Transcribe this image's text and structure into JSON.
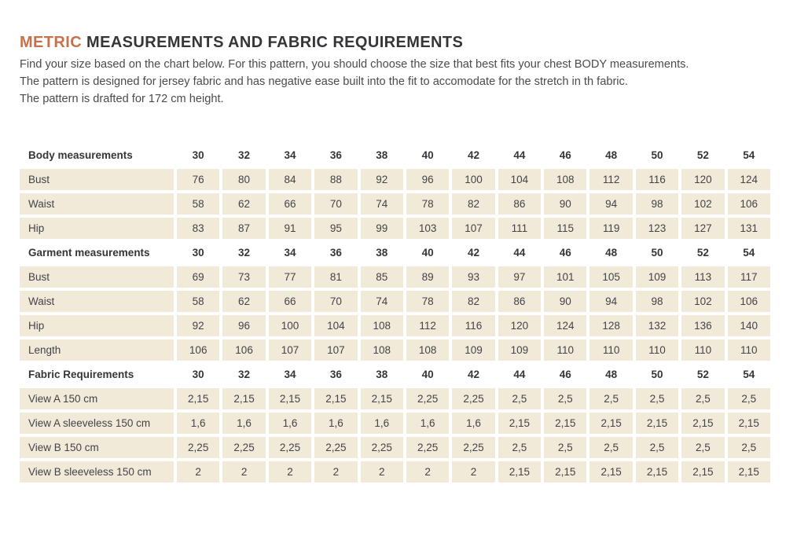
{
  "colors": {
    "accent": "#c4734d",
    "row_bg": "#f2ead8",
    "text": "#3e3e44"
  },
  "header": {
    "title_highlight": "METRIC",
    "title_rest": " MEASUREMENTS AND FABRIC REQUIREMENTS",
    "intro_lines": [
      "Find your size based on the chart below. For this pattern, you should choose the size that best fits your chest BODY measurements.",
      "The pattern is designed for jersey fabric and has negative ease built into the fit to accomodate for the stretch in th fabric.",
      "The pattern is drafted for 172 cm height."
    ]
  },
  "table": {
    "sizes": [
      "30",
      "32",
      "34",
      "36",
      "38",
      "40",
      "42",
      "44",
      "46",
      "48",
      "50",
      "52",
      "54"
    ],
    "sections": [
      {
        "header": "Body measurements",
        "rows": [
          {
            "label": "Bust",
            "values": [
              "76",
              "80",
              "84",
              "88",
              "92",
              "96",
              "100",
              "104",
              "108",
              "112",
              "116",
              "120",
              "124"
            ]
          },
          {
            "label": "Waist",
            "values": [
              "58",
              "62",
              "66",
              "70",
              "74",
              "78",
              "82",
              "86",
              "90",
              "94",
              "98",
              "102",
              "106"
            ]
          },
          {
            "label": "Hip",
            "values": [
              "83",
              "87",
              "91",
              "95",
              "99",
              "103",
              "107",
              "111",
              "115",
              "119",
              "123",
              "127",
              "131"
            ]
          }
        ]
      },
      {
        "header": "Garment measurements",
        "rows": [
          {
            "label": "Bust",
            "values": [
              "69",
              "73",
              "77",
              "81",
              "85",
              "89",
              "93",
              "97",
              "101",
              "105",
              "109",
              "113",
              "117"
            ]
          },
          {
            "label": "Waist",
            "values": [
              "58",
              "62",
              "66",
              "70",
              "74",
              "78",
              "82",
              "86",
              "90",
              "94",
              "98",
              "102",
              "106"
            ]
          },
          {
            "label": "Hip",
            "values": [
              "92",
              "96",
              "100",
              "104",
              "108",
              "112",
              "116",
              "120",
              "124",
              "128",
              "132",
              "136",
              "140"
            ]
          },
          {
            "label": "Length",
            "values": [
              "106",
              "106",
              "107",
              "107",
              "108",
              "108",
              "109",
              "109",
              "110",
              "110",
              "110",
              "110",
              "110"
            ]
          }
        ]
      },
      {
        "header": "Fabric Requirements",
        "rows": [
          {
            "label": "View A 150 cm",
            "values": [
              "2,15",
              "2,15",
              "2,15",
              "2,15",
              "2,15",
              "2,25",
              "2,25",
              "2,5",
              "2,5",
              "2,5",
              "2,5",
              "2,5",
              "2,5"
            ]
          },
          {
            "label": "View A sleeveless 150 cm",
            "values": [
              "1,6",
              "1,6",
              "1,6",
              "1,6",
              "1,6",
              "1,6",
              "1,6",
              "2,15",
              "2,15",
              "2,15",
              "2,15",
              "2,15",
              "2,15"
            ]
          },
          {
            "label": "View B 150 cm",
            "values": [
              "2,25",
              "2,25",
              "2,25",
              "2,25",
              "2,25",
              "2,25",
              "2,25",
              "2,5",
              "2,5",
              "2,5",
              "2,5",
              "2,5",
              "2,5"
            ]
          },
          {
            "label": "View B sleeveless 150 cm",
            "values": [
              "2",
              "2",
              "2",
              "2",
              "2",
              "2",
              "2",
              "2,15",
              "2,15",
              "2,15",
              "2,15",
              "2,15",
              "2,15"
            ]
          }
        ]
      }
    ]
  }
}
